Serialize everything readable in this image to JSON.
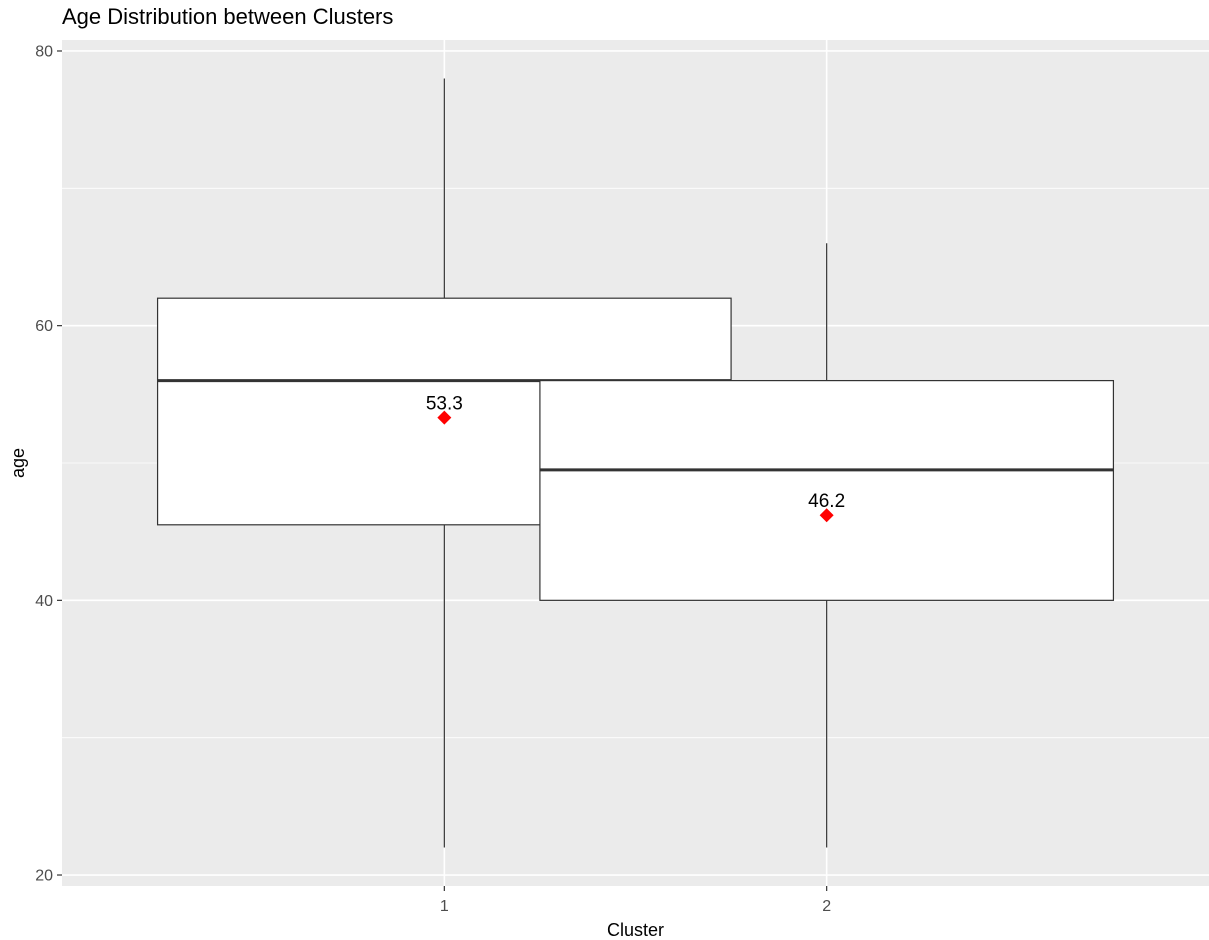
{
  "chart_data": {
    "type": "boxplot",
    "title": "Age Distribution between Clusters",
    "xlabel": "Cluster",
    "ylabel": "age",
    "categories": [
      "1",
      "2"
    ],
    "ylim": [
      19.2,
      80.8
    ],
    "yticks": [
      20,
      40,
      60,
      80
    ],
    "grid": true,
    "boxes": [
      {
        "category": "1",
        "whisker_low": 22,
        "q1": 45.5,
        "median": 56,
        "q3": 62,
        "whisker_high": 78,
        "mean": 53.3,
        "mean_label": "53.3"
      },
      {
        "category": "2",
        "whisker_low": 22,
        "q1": 40,
        "median": 49.5,
        "q3": 56,
        "whisker_high": 66,
        "mean": 46.2,
        "mean_label": "46.2"
      }
    ],
    "colors": {
      "panel": "#ebebeb",
      "grid": "#ffffff",
      "box_fill": "#ffffff",
      "box_line": "#333333",
      "mean_marker": "#ff0000"
    }
  }
}
